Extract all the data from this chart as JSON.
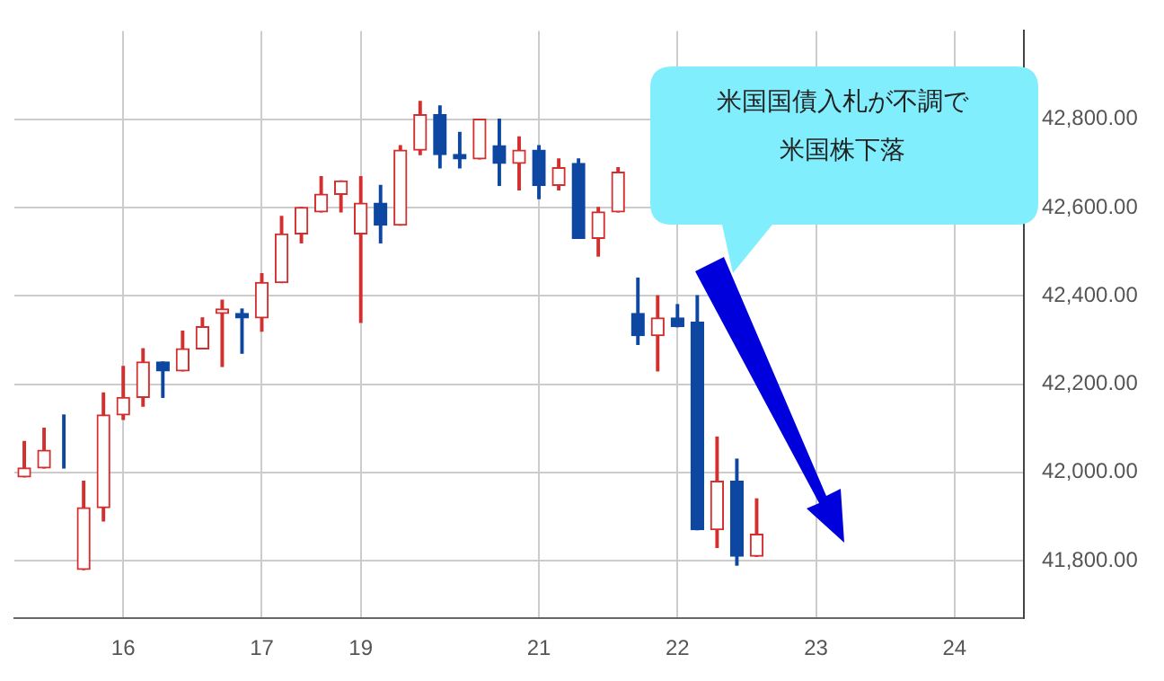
{
  "chart_data": {
    "type": "candlestick",
    "categories": [
      null,
      null,
      null,
      null,
      null,
      "16",
      null,
      null,
      null,
      null,
      null,
      null,
      "17",
      null,
      null,
      null,
      null,
      "19",
      null,
      null,
      null,
      null,
      null,
      null,
      null,
      null,
      "21",
      null,
      null,
      null,
      null,
      null,
      null,
      "22",
      null,
      null,
      null,
      null,
      null,
      null,
      "23",
      null,
      null,
      null,
      null,
      null,
      null,
      "24",
      null,
      null,
      null
    ],
    "ohlc": [
      [
        41990,
        42070,
        41990,
        42010
      ],
      [
        42010,
        42100,
        42010,
        42050
      ],
      [
        42050,
        42130,
        42010,
        42050
      ],
      [
        41780,
        41980,
        41780,
        41920
      ],
      [
        41920,
        42180,
        41890,
        42130
      ],
      [
        42130,
        42240,
        42120,
        42170
      ],
      [
        42170,
        42280,
        42150,
        42250
      ],
      [
        42250,
        42250,
        42170,
        42230
      ],
      [
        42230,
        42320,
        42230,
        42280
      ],
      [
        42280,
        42350,
        42280,
        42330
      ],
      [
        42360,
        42390,
        42240,
        42370
      ],
      [
        42360,
        42370,
        42270,
        42350
      ],
      [
        42350,
        42450,
        42320,
        42430
      ],
      [
        42430,
        42580,
        42430,
        42540
      ],
      [
        42540,
        42600,
        42520,
        42600
      ],
      [
        42590,
        42670,
        42590,
        42630
      ],
      [
        42630,
        42660,
        42590,
        42660
      ],
      [
        42540,
        42670,
        42340,
        42610
      ],
      [
        42610,
        42650,
        42520,
        42560
      ],
      [
        42560,
        42740,
        42560,
        42730
      ],
      [
        42730,
        42840,
        42720,
        42810
      ],
      [
        42810,
        42830,
        42690,
        42720
      ],
      [
        42720,
        42770,
        42690,
        42710
      ],
      [
        42710,
        42800,
        42710,
        42800
      ],
      [
        42740,
        42800,
        42650,
        42700
      ],
      [
        42700,
        42760,
        42640,
        42730
      ],
      [
        42730,
        42740,
        42620,
        42650
      ],
      [
        42650,
        42710,
        42640,
        42690
      ],
      [
        42700,
        42710,
        42530,
        42530
      ],
      [
        42530,
        42600,
        42490,
        42590
      ],
      [
        42590,
        42690,
        42590,
        42680
      ],
      [
        42360,
        42440,
        42290,
        42310
      ],
      [
        42310,
        42400,
        42230,
        42350
      ],
      [
        42350,
        42380,
        42330,
        42330
      ],
      [
        42340,
        42400,
        41870,
        41870
      ],
      [
        41870,
        42080,
        41830,
        41980
      ],
      [
        41980,
        42030,
        41790,
        41810
      ],
      [
        41810,
        41940,
        41810,
        41860
      ],
      null,
      null,
      null,
      null,
      null,
      null,
      null,
      null,
      null,
      null,
      null,
      null,
      null
    ],
    "colors": [
      "#d32f2f",
      "#d32f2f",
      "#0d47a1",
      "#d32f2f",
      "#d32f2f",
      "#d32f2f",
      "#d32f2f",
      "#0d47a1",
      "#d32f2f",
      "#d32f2f",
      "#d32f2f",
      "#0d47a1",
      "#d32f2f",
      "#d32f2f",
      "#d32f2f",
      "#d32f2f",
      "#d32f2f",
      "#d32f2f",
      "#0d47a1",
      "#d32f2f",
      "#d32f2f",
      "#0d47a1",
      "#0d47a1",
      "#d32f2f",
      "#0d47a1",
      "#d32f2f",
      "#0d47a1",
      "#d32f2f",
      "#0d47a1",
      "#d32f2f",
      "#d32f2f",
      "#0d47a1",
      "#d32f2f",
      "#0d47a1",
      "#0d47a1",
      "#d32f2f",
      "#0d47a1",
      "#d32f2f",
      null,
      null,
      null,
      null,
      null,
      null,
      null,
      null,
      null,
      null,
      null,
      null,
      null
    ],
    "ylim": [
      41670,
      43000
    ],
    "yticks": [
      {
        "value": 41800,
        "label": "41,800.00"
      },
      {
        "value": 42000,
        "label": "42,000.00"
      },
      {
        "value": 42200,
        "label": "42,200.00"
      },
      {
        "value": 42400,
        "label": "42,400.00"
      },
      {
        "value": 42600,
        "label": "42,600.00"
      },
      {
        "value": 42800,
        "label": "42,800.00"
      }
    ],
    "grid": true,
    "annotations": [
      "米国国債入札が不調で",
      "米国株下落"
    ]
  }
}
